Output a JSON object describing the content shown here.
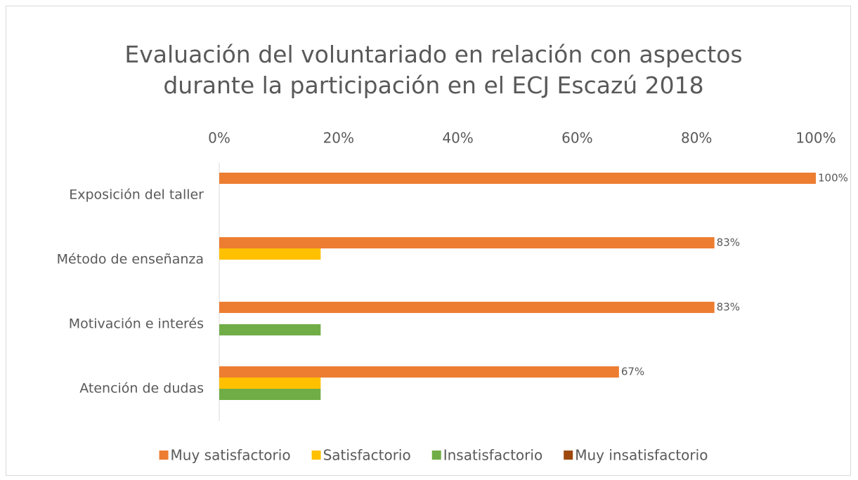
{
  "chart_data": {
    "type": "barh",
    "title": "Evaluación del voluntariado en relación con aspectos durante la participación en el ECJ Escazú 2018",
    "categories": [
      "Exposición del taller",
      "Método de enseñanza",
      "Motivación e interés",
      "Atención de dudas"
    ],
    "series": [
      {
        "name": "Muy satisfactorio",
        "color": "#ed7d31",
        "values": [
          100,
          83,
          83,
          67
        ],
        "value_labels": [
          "100%",
          "83%",
          "83%",
          "67%"
        ]
      },
      {
        "name": "Satisfactorio",
        "color": "#ffc000",
        "values": [
          0,
          17,
          0,
          17
        ]
      },
      {
        "name": "Insatisfactorio",
        "color": "#70ad47",
        "values": [
          0,
          0,
          17,
          17
        ]
      },
      {
        "name": "Muy insatisfactorio",
        "color": "#9e480e",
        "values": [
          0,
          0,
          0,
          0
        ]
      }
    ],
    "xlim": [
      0,
      100
    ],
    "xticks": [
      {
        "value": 0,
        "label": "0%"
      },
      {
        "value": 20,
        "label": "20%"
      },
      {
        "value": 40,
        "label": "40%"
      },
      {
        "value": 60,
        "label": "60%"
      },
      {
        "value": 80,
        "label": "80%"
      },
      {
        "value": 100,
        "label": "100%"
      }
    ],
    "xaxis_position": "top",
    "legend": "bottom",
    "grid": false
  }
}
